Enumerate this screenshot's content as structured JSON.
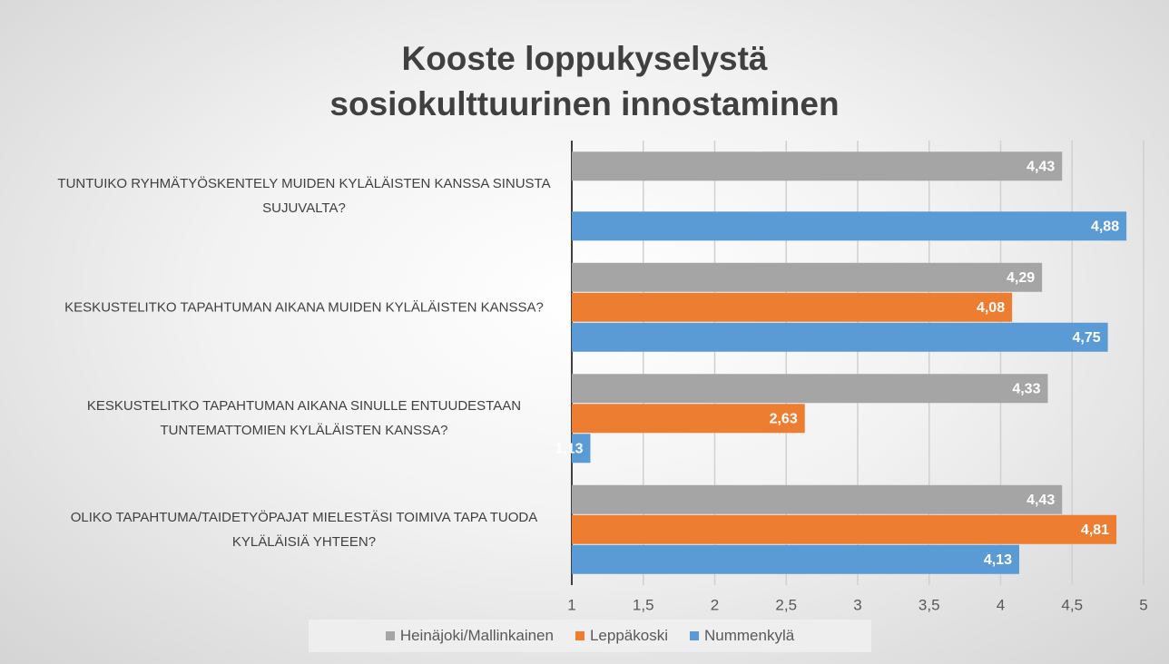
{
  "chart_data": {
    "type": "bar",
    "orientation": "horizontal",
    "title": "Kooste loppukyselystä sosiokulttuurinen innostaminen",
    "categories": [
      "TUNTUIKO RYHMÄTYÖSKENTELY MUIDEN KYLÄLÄISTEN KANSSA SINUSTA SUJUVALTA?",
      "KESKUSTELITKO TAPAHTUMAN AIKANA MUIDEN KYLÄLÄISTEN KANSSA?",
      "KESKUSTELITKO TAPAHTUMAN AIKANA SINULLE ENTUUDESTAAN TUNTEMATTOMIEN KYLÄLÄISTEN KANSSA?",
      "OLIKO TAPAHTUMA/TAIDETYÖPAJAT MIELESTÄSI TOIMIVA TAPA TUODA KYLÄLÄISIÄ YHTEEN?"
    ],
    "series": [
      {
        "name": "Heinäjoki/Mallinkainen",
        "color": "#a5a5a5",
        "values": [
          4.43,
          4.29,
          4.33,
          4.43
        ],
        "value_labels": [
          "4,43",
          "4,29",
          "4,33",
          "4,43"
        ]
      },
      {
        "name": "Leppäkoski",
        "color": "#ed7d31",
        "values": [
          null,
          4.08,
          2.63,
          4.81
        ],
        "value_labels": [
          null,
          "4,08",
          "2,63",
          "4,81"
        ]
      },
      {
        "name": "Nummenkylä",
        "color": "#5b9bd5",
        "values": [
          4.88,
          4.75,
          1.13,
          4.13
        ],
        "value_labels": [
          "4,88",
          "4,75",
          "1,13",
          "4,13"
        ]
      }
    ],
    "xlim": [
      1,
      5
    ],
    "xticks": [
      1,
      {
        "value": 1.5,
        "label": "1,5"
      },
      2,
      {
        "value": 2.5,
        "label": "2,5"
      },
      3,
      {
        "value": 3.5,
        "label": "3,5"
      },
      4,
      {
        "value": 4.5,
        "label": "4,5"
      },
      5
    ],
    "grid": true,
    "legend": "bottom"
  }
}
